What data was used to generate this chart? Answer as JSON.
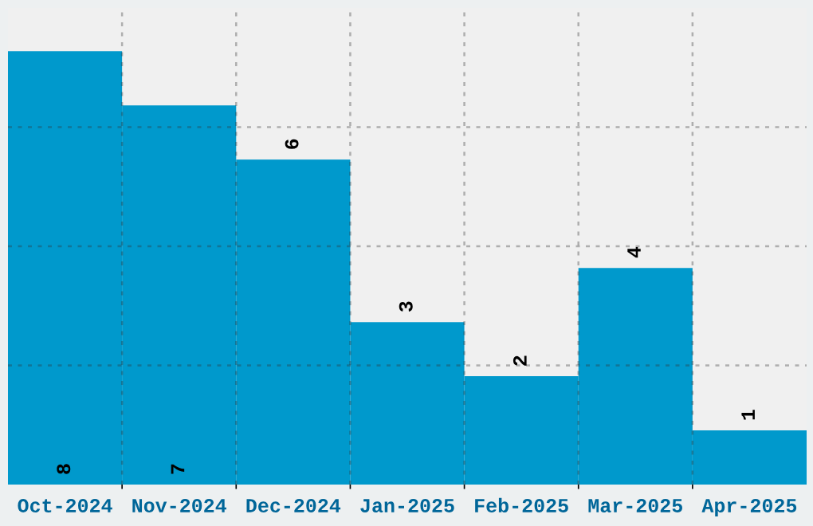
{
  "chart_data": {
    "type": "bar",
    "categories": [
      "Oct-2024",
      "Nov-2024",
      "Dec-2024",
      "Jan-2025",
      "Feb-2025",
      "Mar-2025",
      "Apr-2025"
    ],
    "values": [
      8,
      7,
      6,
      3,
      2,
      4,
      1
    ],
    "color": "#0099cc",
    "ylim": [
      0,
      8.8
    ],
    "yticks": [
      {
        "value": 2.2,
        "label": null
      },
      {
        "value": 4.4,
        "label": null
      },
      {
        "value": 6.6,
        "label": null
      }
    ],
    "grid": true,
    "data_labels": true
  }
}
